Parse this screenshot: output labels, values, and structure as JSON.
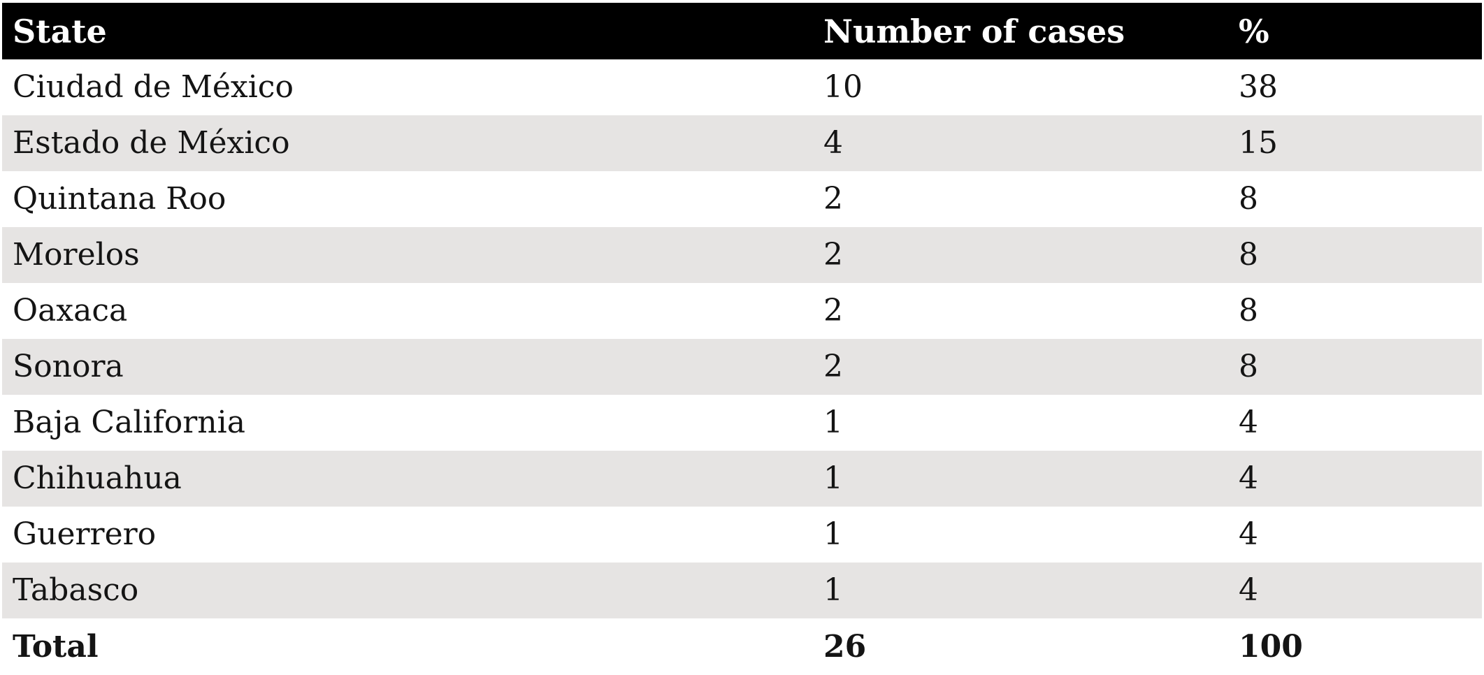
{
  "table": {
    "columns": [
      {
        "label": "State"
      },
      {
        "label": "Number of cases"
      },
      {
        "label": "%"
      }
    ],
    "rows": [
      {
        "state": "Ciudad de México",
        "cases": "10",
        "pct": "38"
      },
      {
        "state": "Estado de México",
        "cases": "4",
        "pct": "15"
      },
      {
        "state": "Quintana Roo",
        "cases": "2",
        "pct": "8"
      },
      {
        "state": "Morelos",
        "cases": "2",
        "pct": "8"
      },
      {
        "state": "Oaxaca",
        "cases": "2",
        "pct": "8"
      },
      {
        "state": "Sonora",
        "cases": "2",
        "pct": "8"
      },
      {
        "state": "Baja California",
        "cases": "1",
        "pct": "4"
      },
      {
        "state": "Chihuahua",
        "cases": "1",
        "pct": "4"
      },
      {
        "state": "Guerrero",
        "cases": "1",
        "pct": "4"
      },
      {
        "state": "Tabasco",
        "cases": "1",
        "pct": "4"
      }
    ],
    "total": {
      "label": "Total",
      "cases": "26",
      "pct": "100"
    }
  },
  "colors": {
    "header_bg": "#000000",
    "header_text": "#ffffff",
    "stripe_bg": "#e6e4e3",
    "row_bg": "#ffffff",
    "body_text": "#141414"
  },
  "chart_data": {
    "type": "table",
    "title": "",
    "columns": [
      "State",
      "Number of cases",
      "%"
    ],
    "rows": [
      [
        "Ciudad de México",
        10,
        38
      ],
      [
        "Estado de México",
        4,
        15
      ],
      [
        "Quintana Roo",
        2,
        8
      ],
      [
        "Morelos",
        2,
        8
      ],
      [
        "Oaxaca",
        2,
        8
      ],
      [
        "Sonora",
        2,
        8
      ],
      [
        "Baja California",
        1,
        4
      ],
      [
        "Chihuahua",
        1,
        4
      ],
      [
        "Guerrero",
        1,
        4
      ],
      [
        "Tabasco",
        1,
        4
      ],
      [
        "Total",
        26,
        100
      ]
    ]
  }
}
